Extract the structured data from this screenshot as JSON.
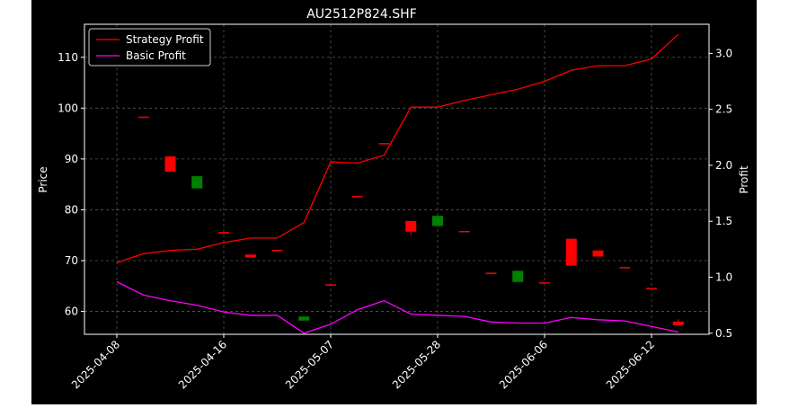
{
  "chart_data": {
    "type": "candlestick",
    "title": "AU2512P824.SHF",
    "ylabel_left": "Price",
    "ylabel_right": "Profit",
    "ylim_left": [
      55.5,
      116.5
    ],
    "ylim_right": [
      0.49,
      3.26
    ],
    "yticks_left": [
      60,
      70,
      80,
      90,
      100,
      110
    ],
    "yticks_right": [
      0.5,
      1.0,
      1.5,
      2.0,
      2.5,
      3.0
    ],
    "grid": true,
    "legend_position": "top-left",
    "colors": {
      "background": "#000000",
      "up": "#ff0000",
      "down": "#008000",
      "strategy": "#ff0000",
      "basic": "#ff00ff",
      "grid": "#555555",
      "axis": "#ffffff"
    },
    "x_tick_labels": [
      {
        "index": 0,
        "label": "2025-04-08"
      },
      {
        "index": 4,
        "label": "2025-04-16"
      },
      {
        "index": 8,
        "label": "2025-05-07"
      },
      {
        "index": 12,
        "label": "2025-05-28"
      },
      {
        "index": 16,
        "label": "2025-06-06"
      },
      {
        "index": 20,
        "label": "2025-06-12"
      }
    ],
    "candles": [
      {
        "i": 1,
        "open": 98.2,
        "close": 98.2,
        "high": 98.2,
        "low": 98.2,
        "dir": "up"
      },
      {
        "i": 2,
        "open": 87.5,
        "close": 90.5,
        "high": 90.5,
        "low": 87.5,
        "dir": "up"
      },
      {
        "i": 3,
        "open": 86.6,
        "close": 84.2,
        "high": 86.6,
        "low": 84.2,
        "dir": "down"
      },
      {
        "i": 4,
        "open": 75.5,
        "close": 75.5,
        "high": 75.5,
        "low": 75.5,
        "dir": "up"
      },
      {
        "i": 5,
        "open": 70.6,
        "close": 71.2,
        "high": 71.2,
        "low": 70.6,
        "dir": "up"
      },
      {
        "i": 6,
        "open": 72.0,
        "close": 72.0,
        "high": 72.0,
        "low": 72.0,
        "dir": "up"
      },
      {
        "i": 7,
        "open": 59.0,
        "close": 58.2,
        "high": 59.0,
        "low": 58.2,
        "dir": "down"
      },
      {
        "i": 8,
        "open": 65.2,
        "close": 65.2,
        "high": 65.2,
        "low": 65.2,
        "dir": "up"
      },
      {
        "i": 9,
        "open": 82.6,
        "close": 82.6,
        "high": 82.6,
        "low": 82.6,
        "dir": "up"
      },
      {
        "i": 10,
        "open": 93.0,
        "close": 93.0,
        "high": 93.0,
        "low": 93.0,
        "dir": "up"
      },
      {
        "i": 11,
        "open": 75.7,
        "close": 77.8,
        "high": 77.8,
        "low": 75.0,
        "dir": "up"
      },
      {
        "i": 12,
        "open": 78.8,
        "close": 76.8,
        "high": 78.8,
        "low": 76.8,
        "dir": "down"
      },
      {
        "i": 13,
        "open": 75.7,
        "close": 75.7,
        "high": 75.7,
        "low": 75.7,
        "dir": "up"
      },
      {
        "i": 14,
        "open": 67.5,
        "close": 67.5,
        "high": 67.5,
        "low": 67.5,
        "dir": "up"
      },
      {
        "i": 15,
        "open": 68.0,
        "close": 65.8,
        "high": 68.0,
        "low": 65.8,
        "dir": "down"
      },
      {
        "i": 16,
        "open": 65.6,
        "close": 65.6,
        "high": 65.6,
        "low": 65.6,
        "dir": "up"
      },
      {
        "i": 17,
        "open": 69.0,
        "close": 74.3,
        "high": 74.3,
        "low": 69.0,
        "dir": "up"
      },
      {
        "i": 18,
        "open": 70.8,
        "close": 72.0,
        "high": 72.0,
        "low": 70.8,
        "dir": "up"
      },
      {
        "i": 19,
        "open": 68.6,
        "close": 68.6,
        "high": 68.6,
        "low": 68.6,
        "dir": "up"
      },
      {
        "i": 20,
        "open": 64.5,
        "close": 64.5,
        "high": 64.5,
        "low": 64.5,
        "dir": "up"
      },
      {
        "i": 21,
        "open": 57.3,
        "close": 58.0,
        "high": 58.5,
        "low": 57.3,
        "dir": "up"
      }
    ],
    "series": [
      {
        "name": "Strategy Profit",
        "axis": "right",
        "color": "#ff0000",
        "values": [
          1.13,
          1.21,
          1.24,
          1.25,
          1.31,
          1.35,
          1.35,
          1.49,
          2.03,
          2.02,
          2.09,
          2.52,
          2.52,
          2.58,
          2.63,
          2.68,
          2.75,
          2.85,
          2.89,
          2.89,
          2.95,
          3.17
        ]
      },
      {
        "name": "Basic Profit",
        "axis": "right",
        "color": "#ff00ff",
        "values": [
          0.96,
          0.84,
          0.79,
          0.75,
          0.69,
          0.66,
          0.66,
          0.5,
          0.58,
          0.71,
          0.79,
          0.67,
          0.66,
          0.65,
          0.6,
          0.59,
          0.59,
          0.64,
          0.62,
          0.61,
          0.56,
          0.51
        ]
      }
    ]
  }
}
